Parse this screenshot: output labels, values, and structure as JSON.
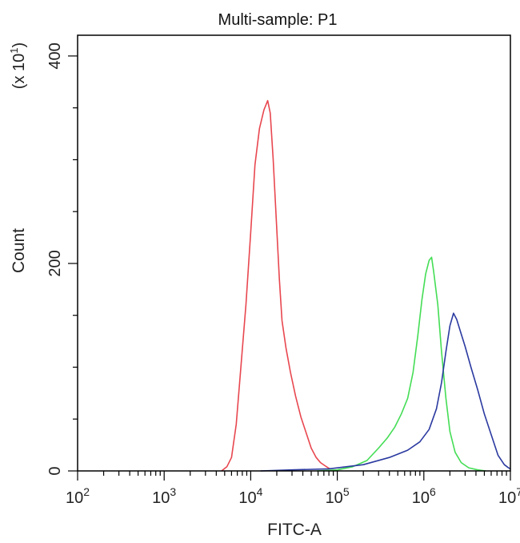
{
  "chart_data": {
    "type": "line",
    "title": "Multi-sample: P1",
    "xlabel": "FITC-A",
    "ylabel": "Count",
    "y_multiplier": "(x 10",
    "y_multiplier_exp": "1",
    "y_multiplier_close": ")",
    "x_scale": "log",
    "xlim": [
      100,
      10000000
    ],
    "ylim": [
      0,
      420
    ],
    "x_ticks": [
      {
        "value": 100,
        "base": "10",
        "exp": "2"
      },
      {
        "value": 1000,
        "base": "10",
        "exp": "3"
      },
      {
        "value": 10000,
        "base": "10",
        "exp": "4"
      },
      {
        "value": 100000,
        "base": "10",
        "exp": "5"
      },
      {
        "value": 1000000,
        "base": "10",
        "exp": "6"
      },
      {
        "value": 10000000,
        "base": "10",
        "exp": "7"
      }
    ],
    "y_ticks": [
      {
        "value": 0,
        "label": "0"
      },
      {
        "value": 200,
        "label": "200"
      },
      {
        "value": 400,
        "label": "400"
      }
    ],
    "grid": false,
    "series": [
      {
        "color": "#e8474f",
        "points": [
          [
            4600,
            0
          ],
          [
            5300,
            4
          ],
          [
            6000,
            13
          ],
          [
            6800,
            45
          ],
          [
            7700,
            100
          ],
          [
            8800,
            160
          ],
          [
            10000,
            230
          ],
          [
            11200,
            295
          ],
          [
            12600,
            330
          ],
          [
            14200,
            348
          ],
          [
            15700,
            357
          ],
          [
            16800,
            345
          ],
          [
            18200,
            300
          ],
          [
            19800,
            240
          ],
          [
            21400,
            185
          ],
          [
            23000,
            145
          ],
          [
            25600,
            118
          ],
          [
            28800,
            95
          ],
          [
            33000,
            72
          ],
          [
            38000,
            52
          ],
          [
            44000,
            36
          ],
          [
            50000,
            22
          ],
          [
            57000,
            13
          ],
          [
            64000,
            8
          ],
          [
            72000,
            5
          ],
          [
            82000,
            2
          ]
        ]
      },
      {
        "color": "#44dd55",
        "points": [
          [
            58000,
            0
          ],
          [
            100000,
            1
          ],
          [
            150000,
            4
          ],
          [
            220000,
            10
          ],
          [
            300000,
            22
          ],
          [
            380000,
            32
          ],
          [
            460000,
            42
          ],
          [
            550000,
            55
          ],
          [
            650000,
            70
          ],
          [
            750000,
            95
          ],
          [
            850000,
            130
          ],
          [
            950000,
            165
          ],
          [
            1050000,
            190
          ],
          [
            1150000,
            203
          ],
          [
            1230000,
            206
          ],
          [
            1300000,
            192
          ],
          [
            1450000,
            160
          ],
          [
            1600000,
            115
          ],
          [
            1800000,
            70
          ],
          [
            2000000,
            38
          ],
          [
            2300000,
            18
          ],
          [
            2700000,
            8
          ],
          [
            3300000,
            3
          ],
          [
            4200000,
            1
          ],
          [
            5200000,
            0
          ]
        ]
      },
      {
        "color": "#2b3aa0",
        "points": [
          [
            13000,
            0
          ],
          [
            30000,
            1
          ],
          [
            80000,
            2
          ],
          [
            200000,
            6
          ],
          [
            400000,
            13
          ],
          [
            650000,
            20
          ],
          [
            900000,
            28
          ],
          [
            1150000,
            40
          ],
          [
            1400000,
            60
          ],
          [
            1600000,
            85
          ],
          [
            1800000,
            115
          ],
          [
            2000000,
            140
          ],
          [
            2200000,
            152
          ],
          [
            2400000,
            146
          ],
          [
            2700000,
            132
          ],
          [
            3000000,
            120
          ],
          [
            3500000,
            100
          ],
          [
            4200000,
            78
          ],
          [
            5000000,
            55
          ],
          [
            6000000,
            35
          ],
          [
            7200000,
            15
          ],
          [
            8500000,
            6
          ],
          [
            9500000,
            3
          ],
          [
            10000000,
            2
          ]
        ]
      }
    ]
  }
}
